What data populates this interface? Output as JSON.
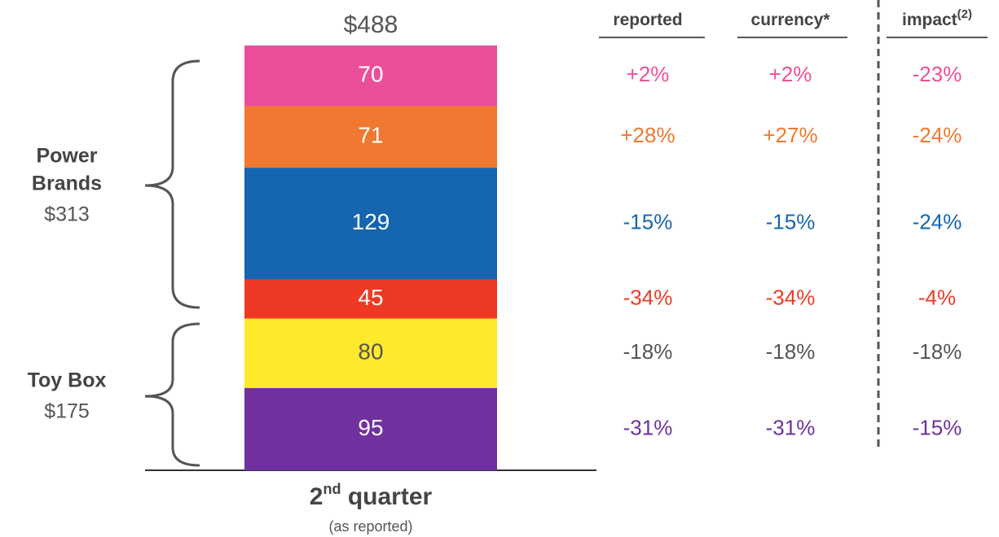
{
  "chart_data": {
    "type": "stacked_bar",
    "total": 488,
    "total_label": "$488",
    "category_parts": {
      "main": "2",
      "sup": "nd",
      "rest": " quarter"
    },
    "category_note": "(as reported)",
    "columns": [
      {
        "text": "reported"
      },
      {
        "text": "currency*"
      },
      {
        "text": "impact",
        "sup": "(2)"
      }
    ],
    "series": [
      {
        "color": "#ec4f9a",
        "label_color": "#ffffff",
        "text_color": "#ec4f9a",
        "values": [
          70
        ],
        "changes": [
          "+2%",
          "+2%",
          "-23%"
        ]
      },
      {
        "color": "#f07830",
        "label_color": "#ffffff",
        "text_color": "#f07830",
        "values": [
          71
        ],
        "changes": [
          "+28%",
          "+27%",
          "-24%"
        ]
      },
      {
        "color": "#1565b0",
        "label_color": "#ffffff",
        "text_color": "#1565b0",
        "values": [
          129
        ],
        "changes": [
          "-15%",
          "-15%",
          "-24%"
        ]
      },
      {
        "color": "#ee3a24",
        "label_color": "#ffffff",
        "text_color": "#ee3a24",
        "values": [
          45
        ],
        "changes": [
          "-34%",
          "-34%",
          "-4%"
        ]
      },
      {
        "color": "#ffe92c",
        "label_color": "#555555",
        "text_color": "#555555",
        "values": [
          80
        ],
        "changes": [
          "-18%",
          "-18%",
          "-18%"
        ]
      },
      {
        "color": "#7030a0",
        "label_color": "#ffffff",
        "text_color": "#7030a0",
        "values": [
          95
        ],
        "changes": [
          "-31%",
          "-31%",
          "-15%"
        ]
      }
    ],
    "groups": [
      {
        "lines": [
          "Power",
          "Brands"
        ],
        "value": 313,
        "label": "$313"
      },
      {
        "lines": [
          "Toy Box"
        ],
        "value": 175,
        "label": "$175"
      }
    ]
  }
}
